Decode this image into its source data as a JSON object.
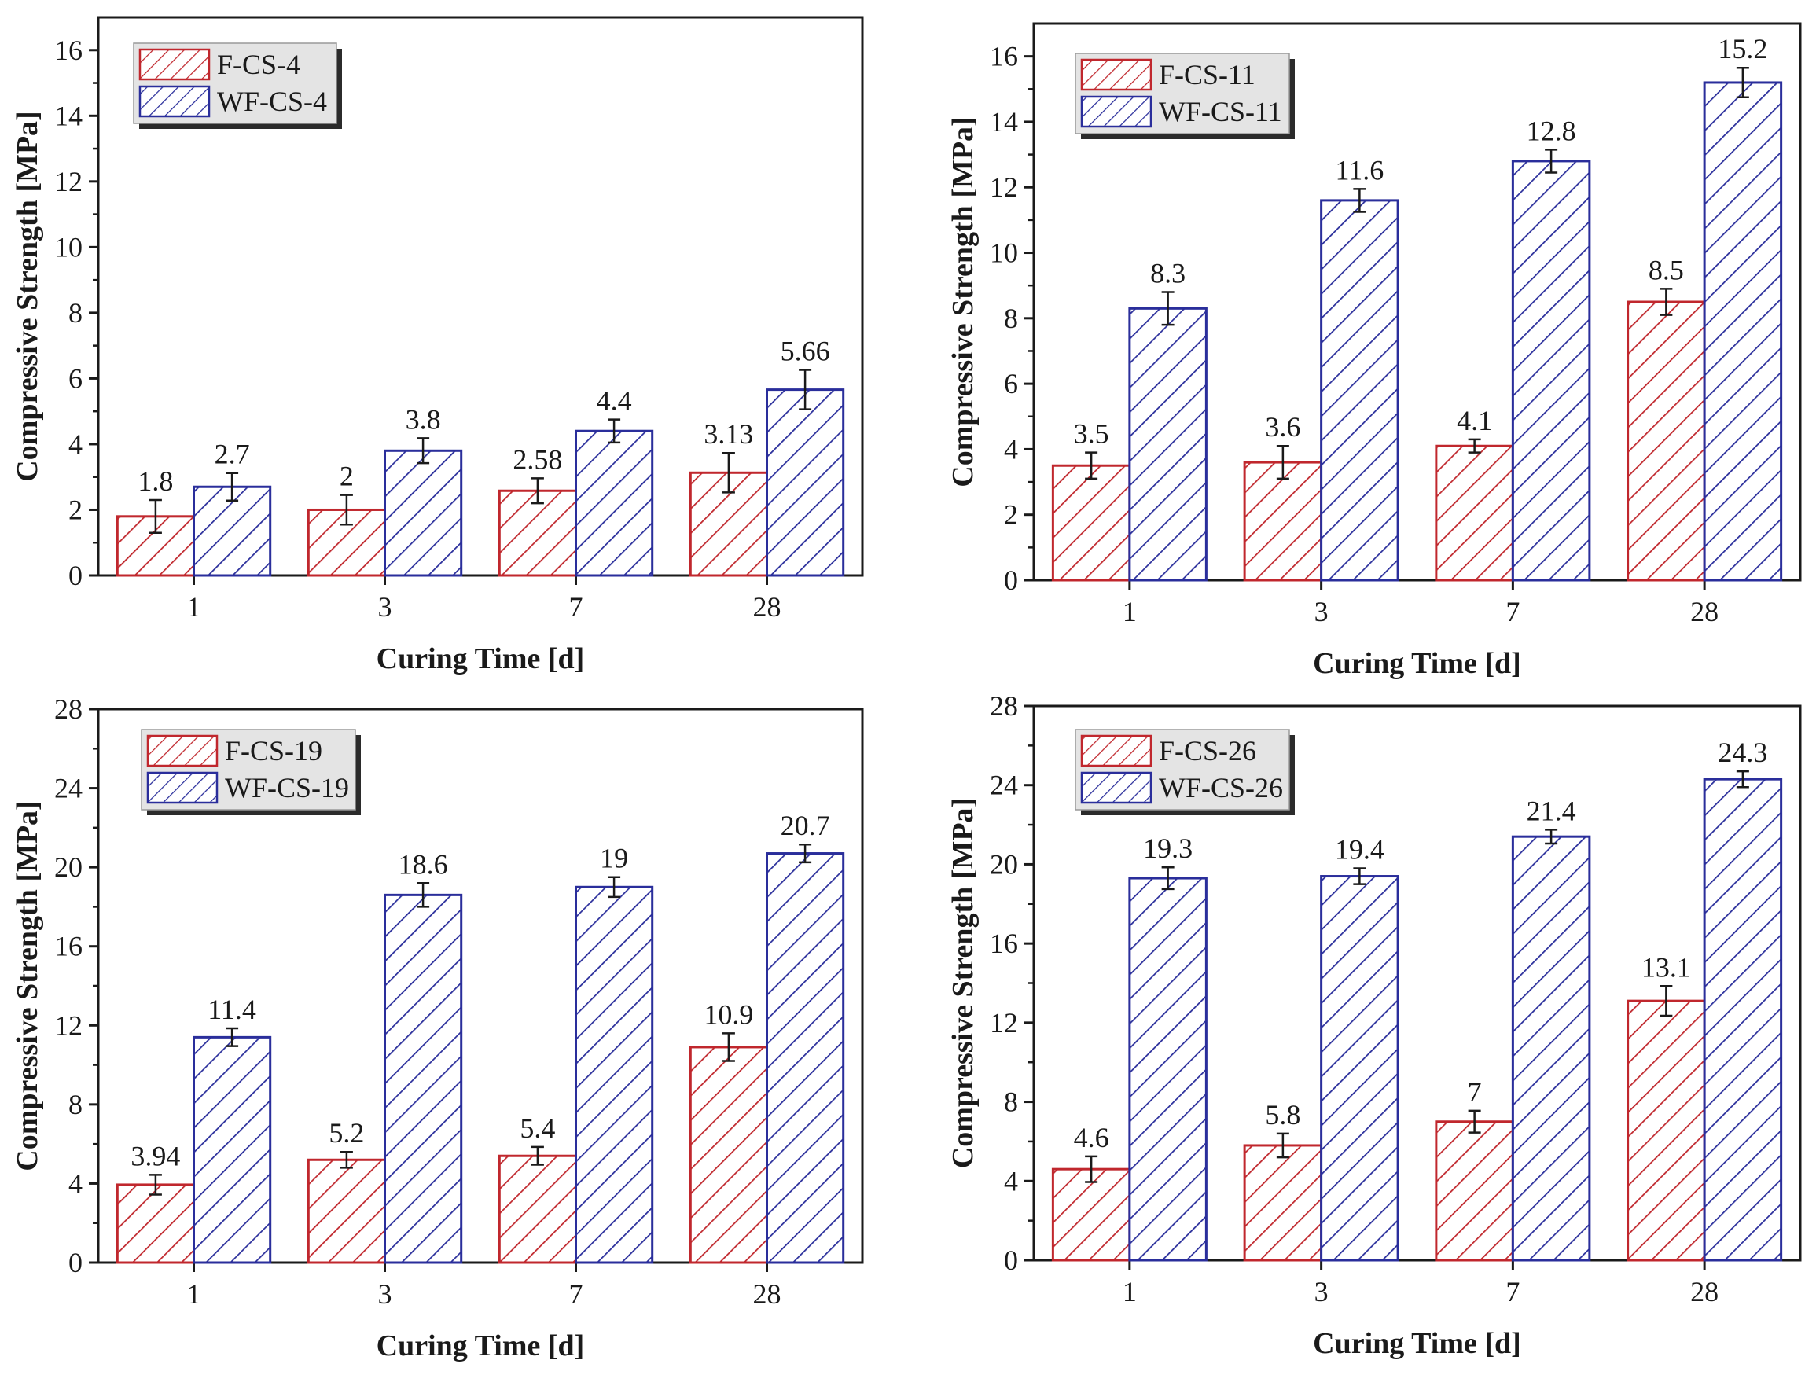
{
  "chart_data": [
    {
      "type": "bar",
      "categories": [
        "1",
        "3",
        "7",
        "28"
      ],
      "series": [
        {
          "name": "F-CS-4",
          "color": "#c0272d",
          "values": [
            1.8,
            2,
            2.58,
            3.13
          ],
          "labels": [
            "1.8",
            "2",
            "2.58",
            "3.13"
          ],
          "errors": [
            0.5,
            0.45,
            0.38,
            0.6
          ]
        },
        {
          "name": "WF-CS-4",
          "color": "#2a2e9b",
          "values": [
            2.7,
            3.8,
            4.4,
            5.66
          ],
          "labels": [
            "2.7",
            "3.8",
            "4.4",
            "5.66"
          ],
          "errors": [
            0.42,
            0.38,
            0.35,
            0.6
          ]
        }
      ],
      "xlabel": "Curing Time [d]",
      "ylabel": "Compressive Strength [MPa]",
      "ylim": [
        0,
        17
      ],
      "yticks": [
        0,
        2,
        4,
        6,
        8,
        10,
        12,
        14,
        16
      ],
      "legend": "top-left"
    },
    {
      "type": "bar",
      "categories": [
        "1",
        "3",
        "7",
        "28"
      ],
      "series": [
        {
          "name": "F-CS-11",
          "color": "#c0272d",
          "values": [
            3.5,
            3.6,
            4.1,
            8.5
          ],
          "labels": [
            "3.5",
            "3.6",
            "4.1",
            "8.5"
          ],
          "errors": [
            0.4,
            0.5,
            0.2,
            0.4
          ]
        },
        {
          "name": "WF-CS-11",
          "color": "#2a2e9b",
          "values": [
            8.3,
            11.6,
            12.8,
            15.2
          ],
          "labels": [
            "8.3",
            "11.6",
            "12.8",
            "15.2"
          ],
          "errors": [
            0.5,
            0.35,
            0.35,
            0.45
          ]
        }
      ],
      "xlabel": "Curing Time [d]",
      "ylabel": "Compressive Strength [MPa]",
      "ylim": [
        0,
        17
      ],
      "yticks": [
        0,
        2,
        4,
        6,
        8,
        10,
        12,
        14,
        16
      ],
      "legend": "top-left"
    },
    {
      "type": "bar",
      "categories": [
        "1",
        "3",
        "7",
        "28"
      ],
      "series": [
        {
          "name": "F-CS-19",
          "color": "#c0272d",
          "values": [
            3.94,
            5.2,
            5.4,
            10.9
          ],
          "labels": [
            "3.94",
            "5.2",
            "5.4",
            "10.9"
          ],
          "errors": [
            0.5,
            0.4,
            0.45,
            0.7
          ]
        },
        {
          "name": "WF-CS-19",
          "color": "#2a2e9b",
          "values": [
            11.4,
            18.6,
            19,
            20.7
          ],
          "labels": [
            "11.4",
            "18.6",
            "19",
            "20.7"
          ],
          "errors": [
            0.45,
            0.6,
            0.5,
            0.45
          ]
        }
      ],
      "xlabel": "Curing Time [d]",
      "ylabel": "Compressive Strength [MPa]",
      "ylim": [
        0,
        28
      ],
      "yticks": [
        0,
        4,
        8,
        12,
        16,
        20,
        24,
        28
      ],
      "legend": "top-left"
    },
    {
      "type": "bar",
      "categories": [
        "1",
        "3",
        "7",
        "28"
      ],
      "series": [
        {
          "name": "F-CS-26",
          "color": "#c0272d",
          "values": [
            4.6,
            5.8,
            7,
            13.1
          ],
          "labels": [
            "4.6",
            "5.8",
            "7",
            "13.1"
          ],
          "errors": [
            0.65,
            0.6,
            0.55,
            0.75
          ]
        },
        {
          "name": "WF-CS-26",
          "color": "#2a2e9b",
          "values": [
            19.3,
            19.4,
            21.4,
            24.3
          ],
          "labels": [
            "19.3",
            "19.4",
            "21.4",
            "24.3"
          ],
          "errors": [
            0.55,
            0.4,
            0.35,
            0.4
          ]
        }
      ],
      "xlabel": "Curing Time [d]",
      "ylabel": "Compressive Strength [MPa]",
      "ylim": [
        0,
        28
      ],
      "yticks": [
        0,
        4,
        8,
        12,
        16,
        20,
        24,
        28
      ],
      "legend": "top-left"
    }
  ]
}
